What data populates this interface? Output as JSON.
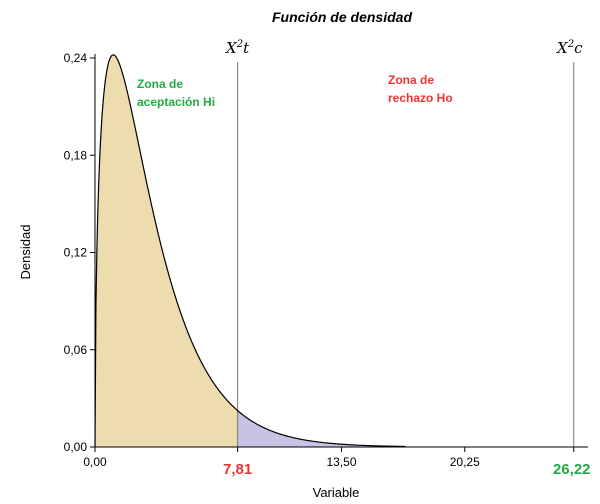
{
  "chart_data": {
    "type": "area",
    "title": "Función de densidad",
    "xlabel": "Variable",
    "ylabel": "Densidad",
    "distribution": "chi-square",
    "degrees_of_freedom": 3,
    "xlim": [
      0,
      27
    ],
    "ylim": [
      0,
      0.24
    ],
    "x_ticks": [
      "0,00",
      "13,50",
      "20,25"
    ],
    "y_ticks": [
      "0,00",
      "0,06",
      "0,12",
      "0,18",
      "0,24"
    ],
    "y_tick_values": [
      0,
      0.06,
      0.12,
      0.18,
      0.24
    ],
    "x_tick_values": [
      0,
      13.5,
      20.25
    ],
    "critical_value": {
      "x": 7.81,
      "label": "7,81",
      "curve_label": "X",
      "curve_label_sup": "2",
      "curve_label_sub": "t",
      "color": "#ee3333"
    },
    "calculated_value": {
      "x": 26.22,
      "label": "26,22",
      "curve_label": "X",
      "curve_label_sup": "2",
      "curve_label_sub": "c",
      "color": "#22aa44"
    },
    "regions": [
      {
        "name": "Zona de aceptación Hi",
        "lines": [
          "Zona de",
          "aceptación Hi"
        ],
        "from": 0,
        "to": 7.81,
        "fill": "#ecdcae",
        "text_color": "#22aa44"
      },
      {
        "name": "Zona de rechazo Ho",
        "lines": [
          "Zona de",
          "rechazo Ho"
        ],
        "from": 7.81,
        "to": 17,
        "fill": "#c7c3e4",
        "text_color": "#ee3333"
      }
    ]
  }
}
